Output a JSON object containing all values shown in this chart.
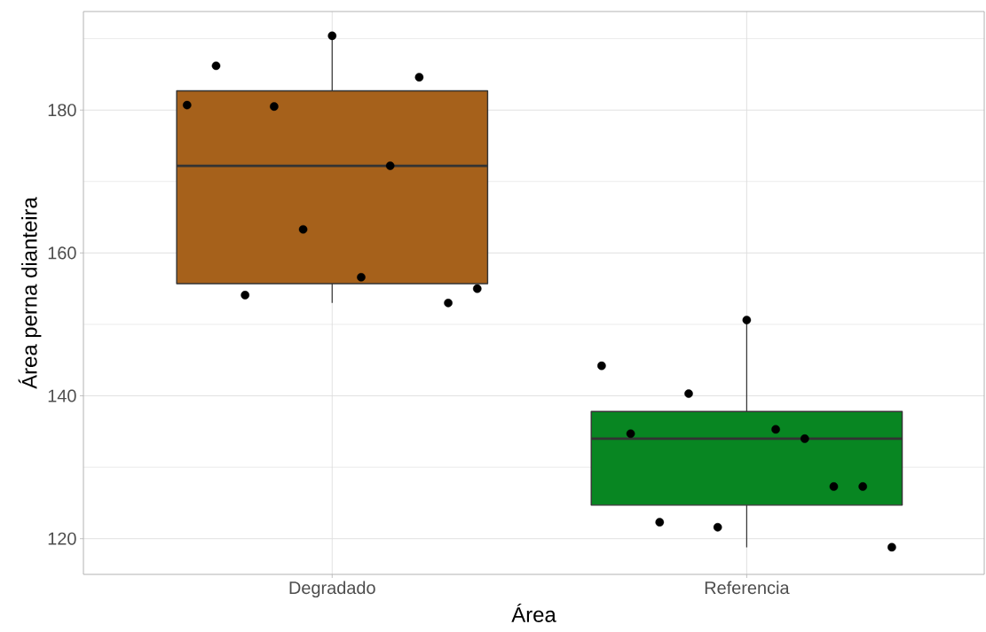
{
  "chart_data": {
    "type": "box",
    "xlabel": "Área",
    "ylabel": "Área perna dianteira",
    "categories": [
      "Degradado",
      "Referencia"
    ],
    "boxes": [
      {
        "low": 153.0,
        "q1": 155.7,
        "median": 172.2,
        "q3": 182.7,
        "high": 190.4
      },
      {
        "low": 118.8,
        "q1": 124.7,
        "median": 134.0,
        "q3": 137.8,
        "high": 150.6
      }
    ],
    "colors": [
      "#a6611b",
      "#088622"
    ],
    "ylim": [
      115,
      193.8
    ],
    "yticks": [
      120,
      140,
      160,
      180
    ],
    "grid": true,
    "series": [
      {
        "type": "scatter",
        "color": "#000000",
        "marker": "circle",
        "x": [
          "Degradado",
          "Degradado",
          "Degradado",
          "Degradado",
          "Degradado",
          "Degradado",
          "Degradado",
          "Degradado",
          "Degradado",
          "Degradado",
          "Degradado",
          "Referencia",
          "Referencia",
          "Referencia",
          "Referencia",
          "Referencia",
          "Referencia",
          "Referencia",
          "Referencia",
          "Referencia",
          "Referencia",
          "Referencia"
        ],
        "values": [
          180.7,
          186.2,
          154.1,
          180.5,
          163.3,
          190.4,
          156.6,
          172.2,
          184.6,
          153.0,
          155.0,
          144.2,
          134.7,
          122.3,
          140.3,
          121.6,
          150.6,
          135.3,
          134.0,
          127.3,
          127.3,
          118.8
        ]
      }
    ]
  }
}
